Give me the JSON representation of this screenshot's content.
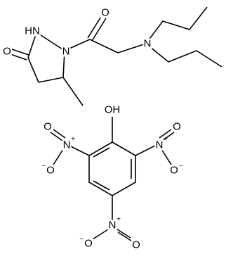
{
  "molecule_1": {
    "atoms": [
      "O",
      "HN",
      "N",
      "O",
      "N"
    ]
  },
  "molecule_2": {
    "atoms": [
      "OH",
      "N",
      "+",
      "O",
      "O",
      "−",
      "N",
      "+",
      "O",
      "O",
      "−",
      "N",
      "+",
      "O",
      "O",
      "−"
    ]
  }
}
